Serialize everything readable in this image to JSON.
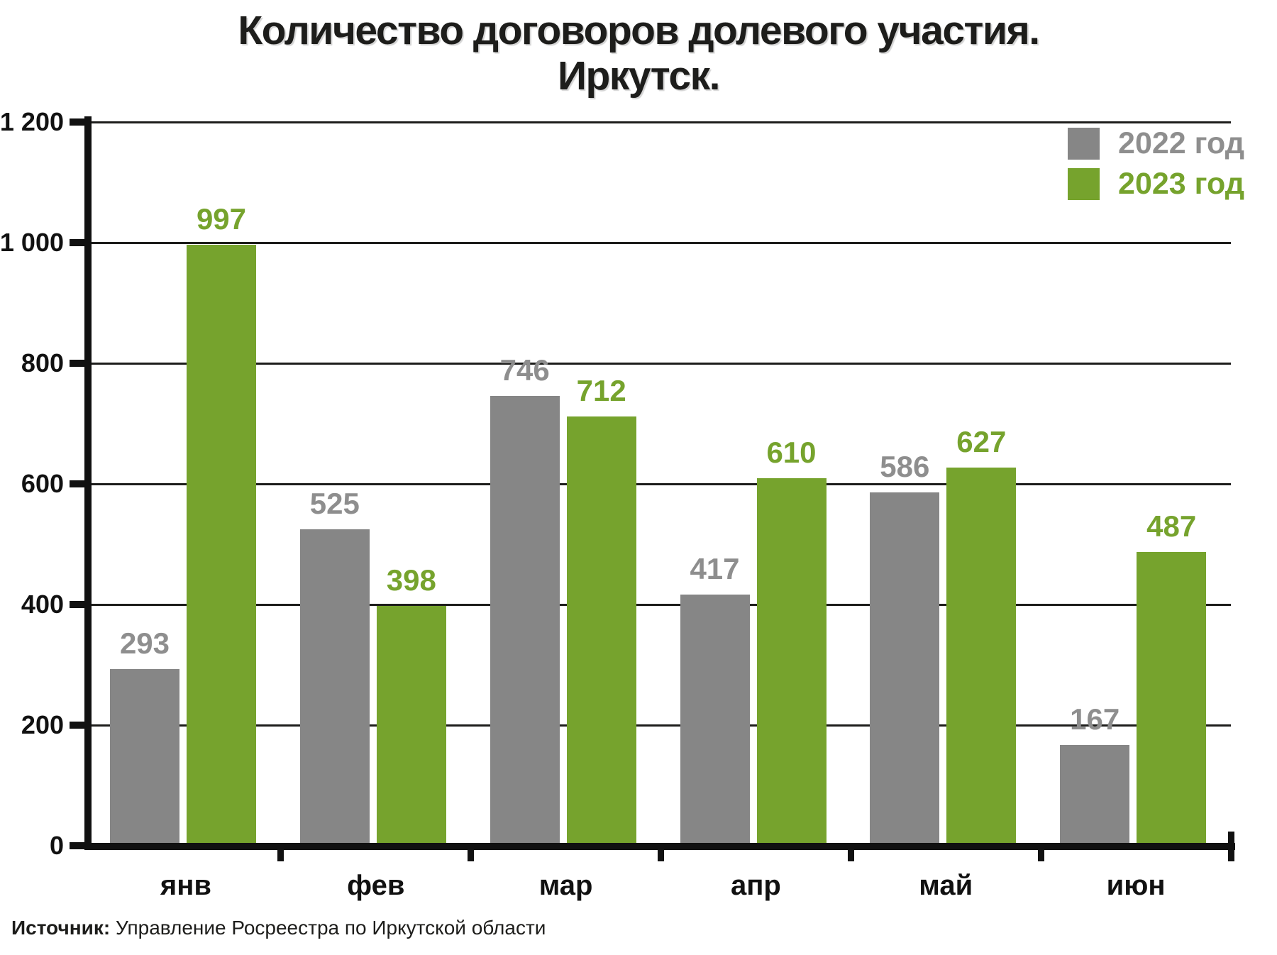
{
  "title": {
    "line1": "Количество договоров долевого участия.",
    "line2": "Иркутск."
  },
  "source": {
    "label": "Источник:",
    "text": " Управление Росреестра по Иркутской области"
  },
  "colors": {
    "bar_2022": "#868686",
    "bar_2023": "#76a32d",
    "label_2022": "#8e8e8e",
    "label_2023": "#76a32d",
    "axis": "#111111"
  },
  "chart_data": {
    "type": "bar",
    "title": "Количество договоров долевого участия. Иркутск.",
    "xlabel": "",
    "ylabel": "",
    "categories": [
      "янв",
      "фев",
      "мар",
      "апр",
      "май",
      "июн"
    ],
    "series": [
      {
        "name": "2022 год",
        "color": "#868686",
        "label_color": "#8e8e8e",
        "values": [
          293,
          525,
          746,
          417,
          586,
          167
        ]
      },
      {
        "name": "2023 год",
        "color": "#76a32d",
        "label_color": "#76a32d",
        "values": [
          997,
          398,
          712,
          610,
          627,
          487
        ]
      }
    ],
    "ylim": [
      0,
      1200
    ],
    "yticks": [
      {
        "value": 0,
        "label": "0"
      },
      {
        "value": 200,
        "label": "200"
      },
      {
        "value": 400,
        "label": "400"
      },
      {
        "value": 600,
        "label": "600"
      },
      {
        "value": 800,
        "label": "800"
      },
      {
        "value": 1000,
        "label": "1 000"
      },
      {
        "value": 1200,
        "label": "1 200"
      }
    ],
    "grid": true,
    "legend_position": "top-right"
  }
}
